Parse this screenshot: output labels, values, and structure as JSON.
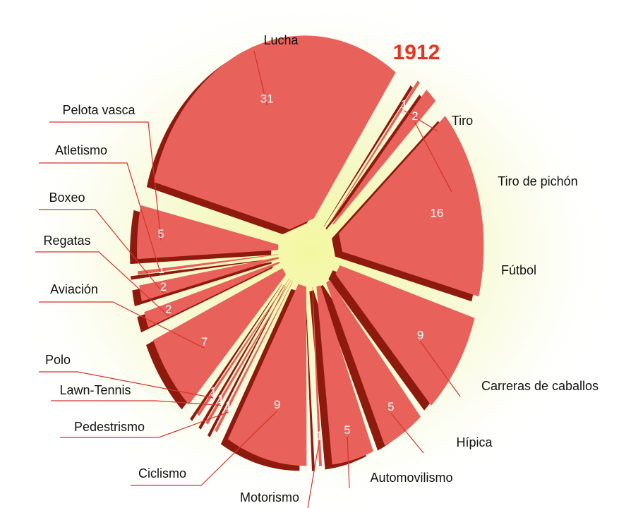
{
  "chart_data": {
    "type": "pie",
    "title": "1912",
    "categories": [
      "Lucha",
      "Tiro",
      "Tiro de pichón",
      "Fútbol",
      "Carreras de caballos",
      "Hípica",
      "Automovilismo",
      "Motorismo",
      "Ciclismo",
      "Pedestrismo",
      "Lawn-Tennis",
      "Polo",
      "Aviación",
      "Regatas",
      "Boxeo",
      "Atletismo",
      "Pelota vasca"
    ],
    "values": [
      31,
      1,
      2,
      16,
      9,
      5,
      5,
      1,
      9,
      1,
      1,
      1,
      7,
      2,
      2,
      1,
      5
    ],
    "color": "#e8615b",
    "side_color": "#8e1a0e",
    "title_color": "#e8341c"
  }
}
